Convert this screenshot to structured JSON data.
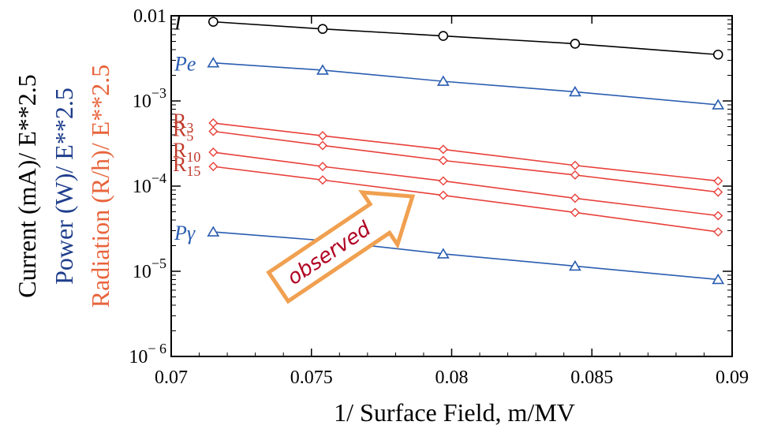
{
  "chart_data": {
    "type": "line",
    "xlabel": "1/ Surface Field,  m/MV",
    "ylabel_lines": [
      {
        "text": "Current (mA)/ E**2.5",
        "color": "#000000"
      },
      {
        "text": "Power (W)/ E**2.5",
        "color": "#1f3e8c"
      },
      {
        "text": "Radiation (R/h)/ E**2.5",
        "color": "#e8643c"
      }
    ],
    "xlim": [
      0.07,
      0.09
    ],
    "ylim": [
      1e-06,
      0.01
    ],
    "yscale": "log",
    "x_ticks": [
      {
        "value": 0.07,
        "label": "0.07"
      },
      {
        "value": 0.075,
        "label": "0.075"
      },
      {
        "value": 0.08,
        "label": "0.08"
      },
      {
        "value": 0.085,
        "label": "0.085"
      },
      {
        "value": 0.09,
        "label": "0.09"
      }
    ],
    "y_ticks": [
      {
        "value": 0.01,
        "base": "0.01",
        "exp": ""
      },
      {
        "value": 0.001,
        "base": "10",
        "exp": "−3"
      },
      {
        "value": 0.0001,
        "base": "10",
        "exp": "−4"
      },
      {
        "value": 1e-05,
        "base": "10",
        "exp": "−5"
      },
      {
        "value": 1e-06,
        "base": "10",
        "exp": "− 6"
      }
    ],
    "x": [
      0.0715,
      0.0754,
      0.0797,
      0.0844,
      0.0895
    ],
    "series": [
      {
        "name": "I",
        "marker": "circle",
        "color": "#000000",
        "label_color": "#000000",
        "italic": true,
        "sub": "",
        "values": [
          0.0085,
          0.007,
          0.0058,
          0.0047,
          0.0035
        ]
      },
      {
        "name": "Pe",
        "marker": "triangle",
        "color": "#2a5db0",
        "label_color": "#2a5db0",
        "italic": true,
        "sub": "",
        "values": [
          0.0028,
          0.0023,
          0.0017,
          0.00128,
          0.0009
        ]
      },
      {
        "name": "R",
        "sub": "3",
        "marker": "diamond",
        "color": "#e8403a",
        "label_color": "#c0392b",
        "italic": false,
        "values": [
          0.00055,
          0.00039,
          0.00027,
          0.000175,
          0.000115
        ]
      },
      {
        "name": "R",
        "sub": "5",
        "marker": "diamond",
        "color": "#e8403a",
        "label_color": "#c0392b",
        "italic": false,
        "values": [
          0.00044,
          0.0003,
          0.0002,
          0.000135,
          8.5e-05
        ]
      },
      {
        "name": "R",
        "sub": "10",
        "marker": "diamond",
        "color": "#e8403a",
        "label_color": "#c0392b",
        "italic": false,
        "values": [
          0.00025,
          0.00017,
          0.000115,
          7.2e-05,
          4.5e-05
        ]
      },
      {
        "name": "R",
        "sub": "15",
        "marker": "diamond",
        "color": "#e8403a",
        "label_color": "#c0392b",
        "italic": false,
        "values": [
          0.00017,
          0.000118,
          7.8e-05,
          4.9e-05,
          2.9e-05
        ]
      },
      {
        "name": "Pγ",
        "marker": "triangle",
        "color": "#2a5db0",
        "label_color": "#2a5db0",
        "italic": true,
        "sub": "",
        "values": [
          2.9e-05,
          2.3e-05,
          1.6e-05,
          1.15e-05,
          8e-06
        ]
      }
    ],
    "annotation": {
      "text": "observed",
      "text_color": "#b00020",
      "arrow_color": "#f0a050"
    },
    "grid": false
  }
}
